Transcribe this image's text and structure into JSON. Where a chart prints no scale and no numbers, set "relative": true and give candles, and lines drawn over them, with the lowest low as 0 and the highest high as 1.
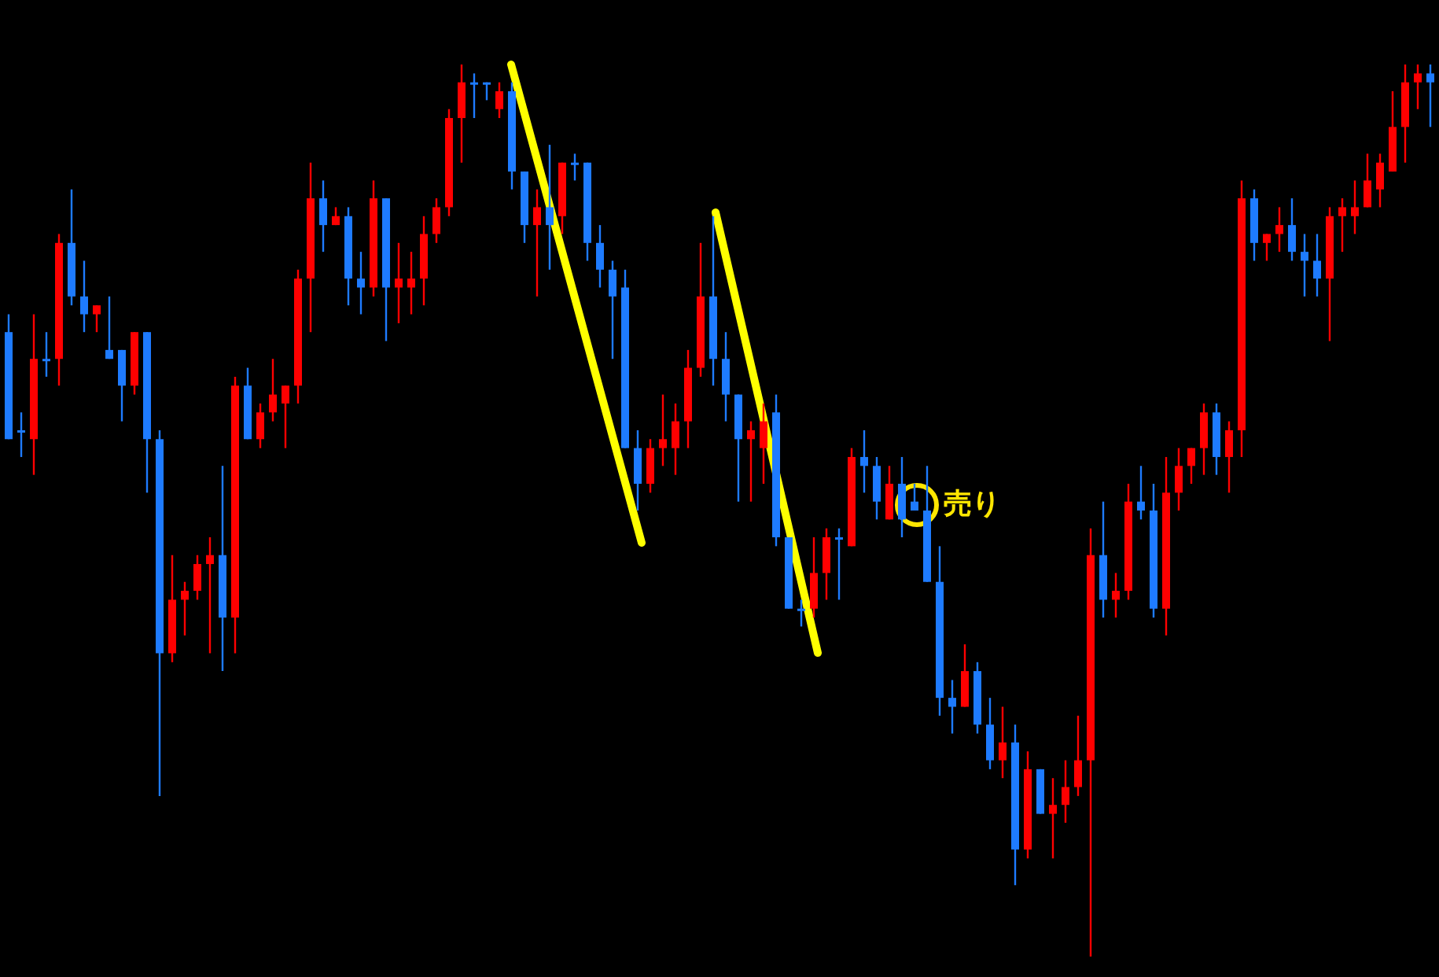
{
  "chart_data": {
    "type": "candlestick",
    "relative": true,
    "categories": [
      null,
      null,
      null,
      null,
      null,
      null,
      null,
      null,
      null,
      null,
      null,
      null,
      null,
      null,
      null,
      null,
      null,
      null,
      null,
      null,
      null,
      null,
      null,
      null,
      null,
      null,
      null,
      null,
      null,
      null,
      null,
      null,
      null,
      null,
      null,
      null,
      null,
      null,
      null,
      null,
      null,
      null,
      null,
      null,
      null,
      null,
      null,
      null,
      null,
      null,
      null,
      null,
      null,
      null,
      null,
      null,
      null,
      null,
      null,
      null,
      null,
      null,
      null,
      null,
      null,
      null,
      null,
      null,
      null,
      null,
      null,
      null,
      null,
      null,
      null,
      null,
      null,
      null,
      null,
      null,
      null,
      null,
      null,
      null,
      null,
      null,
      null,
      null,
      null,
      null,
      null,
      null,
      null,
      null,
      null,
      null,
      null,
      null,
      null,
      null,
      null,
      null,
      null,
      null,
      null,
      null,
      null,
      null,
      null,
      null,
      null,
      null,
      null,
      null
    ],
    "ohlc": [
      [
        0.7,
        0.72,
        0.58,
        0.58
      ],
      [
        0.59,
        0.61,
        0.56,
        0.59
      ],
      [
        0.58,
        0.72,
        0.54,
        0.67
      ],
      [
        0.67,
        0.7,
        0.65,
        0.67
      ],
      [
        0.67,
        0.81,
        0.64,
        0.8
      ],
      [
        0.8,
        0.86,
        0.73,
        0.74
      ],
      [
        0.74,
        0.78,
        0.7,
        0.72
      ],
      [
        0.72,
        0.73,
        0.7,
        0.73
      ],
      [
        0.68,
        0.74,
        0.67,
        0.67
      ],
      [
        0.68,
        0.68,
        0.6,
        0.64
      ],
      [
        0.64,
        0.7,
        0.63,
        0.7
      ],
      [
        0.7,
        0.7,
        0.52,
        0.58
      ],
      [
        0.58,
        0.59,
        0.18,
        0.34
      ],
      [
        0.34,
        0.45,
        0.33,
        0.4
      ],
      [
        0.4,
        0.42,
        0.36,
        0.41
      ],
      [
        0.41,
        0.45,
        0.4,
        0.44
      ],
      [
        0.44,
        0.47,
        0.34,
        0.45
      ],
      [
        0.45,
        0.55,
        0.32,
        0.38
      ],
      [
        0.38,
        0.65,
        0.34,
        0.64
      ],
      [
        0.64,
        0.66,
        0.58,
        0.58
      ],
      [
        0.58,
        0.62,
        0.57,
        0.61
      ],
      [
        0.61,
        0.67,
        0.6,
        0.63
      ],
      [
        0.62,
        0.64,
        0.57,
        0.64
      ],
      [
        0.64,
        0.77,
        0.62,
        0.76
      ],
      [
        0.76,
        0.89,
        0.7,
        0.85
      ],
      [
        0.85,
        0.87,
        0.79,
        0.82
      ],
      [
        0.82,
        0.84,
        0.82,
        0.83
      ],
      [
        0.83,
        0.84,
        0.73,
        0.76
      ],
      [
        0.76,
        0.79,
        0.72,
        0.75
      ],
      [
        0.75,
        0.87,
        0.74,
        0.85
      ],
      [
        0.85,
        0.85,
        0.69,
        0.75
      ],
      [
        0.75,
        0.8,
        0.71,
        0.76
      ],
      [
        0.75,
        0.79,
        0.72,
        0.76
      ],
      [
        0.76,
        0.83,
        0.73,
        0.81
      ],
      [
        0.81,
        0.85,
        0.8,
        0.84
      ],
      [
        0.84,
        0.95,
        0.83,
        0.94
      ],
      [
        0.94,
        1.0,
        0.89,
        0.98
      ],
      [
        0.98,
        0.99,
        0.94,
        0.98
      ],
      [
        0.98,
        0.98,
        0.96,
        0.98
      ],
      [
        0.95,
        0.98,
        0.94,
        0.97
      ],
      [
        0.97,
        0.98,
        0.86,
        0.88
      ],
      [
        0.88,
        0.88,
        0.8,
        0.82
      ],
      [
        0.82,
        0.86,
        0.74,
        0.84
      ],
      [
        0.84,
        0.91,
        0.77,
        0.82
      ],
      [
        0.83,
        0.89,
        0.81,
        0.89
      ],
      [
        0.89,
        0.9,
        0.87,
        0.89
      ],
      [
        0.89,
        0.89,
        0.78,
        0.8
      ],
      [
        0.8,
        0.82,
        0.75,
        0.77
      ],
      [
        0.77,
        0.78,
        0.67,
        0.74
      ],
      [
        0.75,
        0.77,
        0.57,
        0.57
      ],
      [
        0.57,
        0.59,
        0.5,
        0.53
      ],
      [
        0.53,
        0.58,
        0.52,
        0.57
      ],
      [
        0.57,
        0.63,
        0.55,
        0.58
      ],
      [
        0.57,
        0.62,
        0.54,
        0.6
      ],
      [
        0.6,
        0.68,
        0.57,
        0.66
      ],
      [
        0.66,
        0.8,
        0.65,
        0.74
      ],
      [
        0.74,
        0.83,
        0.64,
        0.67
      ],
      [
        0.67,
        0.7,
        0.6,
        0.63
      ],
      [
        0.63,
        0.63,
        0.51,
        0.58
      ],
      [
        0.58,
        0.6,
        0.51,
        0.59
      ],
      [
        0.57,
        0.62,
        0.53,
        0.6
      ],
      [
        0.61,
        0.63,
        0.46,
        0.47
      ],
      [
        0.47,
        0.47,
        0.39,
        0.39
      ],
      [
        0.39,
        0.4,
        0.37,
        0.39
      ],
      [
        0.39,
        0.47,
        0.38,
        0.43
      ],
      [
        0.43,
        0.48,
        0.4,
        0.47
      ],
      [
        0.47,
        0.48,
        0.4,
        0.47
      ],
      [
        0.46,
        0.57,
        0.46,
        0.56
      ],
      [
        0.56,
        0.59,
        0.52,
        0.55
      ],
      [
        0.55,
        0.56,
        0.49,
        0.51
      ],
      [
        0.49,
        0.55,
        0.49,
        0.53
      ],
      [
        0.53,
        0.56,
        0.47,
        0.49
      ],
      [
        0.51,
        0.53,
        0.5,
        0.5
      ],
      [
        0.5,
        0.55,
        0.42,
        0.42
      ],
      [
        0.42,
        0.46,
        0.27,
        0.29
      ],
      [
        0.29,
        0.31,
        0.25,
        0.28
      ],
      [
        0.28,
        0.35,
        0.28,
        0.32
      ],
      [
        0.32,
        0.33,
        0.25,
        0.26
      ],
      [
        0.26,
        0.29,
        0.21,
        0.22
      ],
      [
        0.22,
        0.28,
        0.2,
        0.24
      ],
      [
        0.24,
        0.26,
        0.08,
        0.12
      ],
      [
        0.12,
        0.23,
        0.11,
        0.21
      ],
      [
        0.21,
        0.21,
        0.16,
        0.16
      ],
      [
        0.16,
        0.2,
        0.11,
        0.17
      ],
      [
        0.17,
        0.22,
        0.15,
        0.19
      ],
      [
        0.19,
        0.27,
        0.18,
        0.22
      ],
      [
        0.22,
        0.48,
        0,
        0.45
      ],
      [
        0.45,
        0.51,
        0.38,
        0.4
      ],
      [
        0.4,
        0.43,
        0.38,
        0.41
      ],
      [
        0.41,
        0.53,
        0.4,
        0.51
      ],
      [
        0.51,
        0.55,
        0.49,
        0.5
      ],
      [
        0.5,
        0.53,
        0.38,
        0.39
      ],
      [
        0.39,
        0.56,
        0.36,
        0.52
      ],
      [
        0.52,
        0.57,
        0.5,
        0.55
      ],
      [
        0.55,
        0.57,
        0.53,
        0.57
      ],
      [
        0.57,
        0.62,
        0.54,
        0.61
      ],
      [
        0.61,
        0.62,
        0.54,
        0.56
      ],
      [
        0.56,
        0.6,
        0.52,
        0.59
      ],
      [
        0.59,
        0.87,
        0.56,
        0.85
      ],
      [
        0.85,
        0.86,
        0.78,
        0.8
      ],
      [
        0.8,
        0.81,
        0.78,
        0.81
      ],
      [
        0.81,
        0.84,
        0.79,
        0.82
      ],
      [
        0.82,
        0.85,
        0.78,
        0.79
      ],
      [
        0.79,
        0.81,
        0.74,
        0.78
      ],
      [
        0.78,
        0.81,
        0.74,
        0.76
      ],
      [
        0.76,
        0.84,
        0.69,
        0.83
      ],
      [
        0.83,
        0.85,
        0.79,
        0.84
      ],
      [
        0.83,
        0.87,
        0.81,
        0.84
      ],
      [
        0.84,
        0.9,
        0.84,
        0.87
      ],
      [
        0.86,
        0.9,
        0.84,
        0.89
      ],
      [
        0.88,
        0.97,
        0.88,
        0.93
      ],
      [
        0.93,
        1.0,
        0.89,
        0.98
      ],
      [
        0.98,
        1.0,
        0.95,
        0.99
      ],
      [
        0.99,
        1.0,
        0.93,
        0.98
      ]
    ],
    "colors": [
      "#1e7bff",
      "#1e7bff",
      "#ff0000",
      "#1e7bff",
      "#ff0000",
      "#1e7bff",
      "#1e7bff",
      "#ff0000",
      "#1e7bff",
      "#1e7bff",
      "#ff0000",
      "#1e7bff",
      "#1e7bff",
      "#ff0000",
      "#ff0000",
      "#ff0000",
      "#ff0000",
      "#1e7bff",
      "#ff0000",
      "#1e7bff",
      "#ff0000",
      "#ff0000",
      "#ff0000",
      "#ff0000",
      "#ff0000",
      "#1e7bff",
      "#ff0000",
      "#1e7bff",
      "#1e7bff",
      "#ff0000",
      "#1e7bff",
      "#ff0000",
      "#ff0000",
      "#ff0000",
      "#ff0000",
      "#ff0000",
      "#ff0000",
      "#1e7bff",
      "#1e7bff",
      "#ff0000",
      "#1e7bff",
      "#1e7bff",
      "#ff0000",
      "#1e7bff",
      "#ff0000",
      "#1e7bff",
      "#1e7bff",
      "#1e7bff",
      "#1e7bff",
      "#1e7bff",
      "#1e7bff",
      "#ff0000",
      "#ff0000",
      "#ff0000",
      "#ff0000",
      "#ff0000",
      "#1e7bff",
      "#1e7bff",
      "#1e7bff",
      "#ff0000",
      "#ff0000",
      "#1e7bff",
      "#1e7bff",
      "#1e7bff",
      "#ff0000",
      "#ff0000",
      "#1e7bff",
      "#ff0000",
      "#1e7bff",
      "#1e7bff",
      "#ff0000",
      "#1e7bff",
      "#1e7bff",
      "#1e7bff",
      "#1e7bff",
      "#1e7bff",
      "#ff0000",
      "#1e7bff",
      "#1e7bff",
      "#ff0000",
      "#1e7bff",
      "#ff0000",
      "#1e7bff",
      "#ff0000",
      "#ff0000",
      "#ff0000",
      "#ff0000",
      "#1e7bff",
      "#ff0000",
      "#ff0000",
      "#1e7bff",
      "#1e7bff",
      "#ff0000",
      "#ff0000",
      "#ff0000",
      "#ff0000",
      "#1e7bff",
      "#ff0000",
      "#ff0000",
      "#1e7bff",
      "#ff0000",
      "#ff0000",
      "#1e7bff",
      "#1e7bff",
      "#1e7bff",
      "#ff0000",
      "#ff0000",
      "#ff0000",
      "#ff0000",
      "#ff0000",
      "#ff0000",
      "#ff0000",
      "#ff0000",
      "#1e7bff"
    ],
    "annotations": [
      "売り"
    ]
  }
}
